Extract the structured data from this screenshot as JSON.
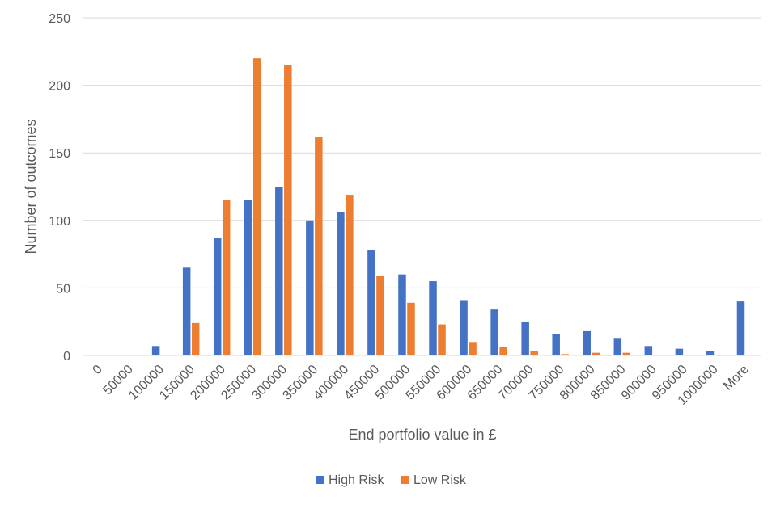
{
  "chart_data": {
    "type": "bar",
    "title": "",
    "xlabel": "End portfolio value in £",
    "ylabel": "Number of outcomes",
    "ylim": [
      0,
      250
    ],
    "yticks": [
      0,
      50,
      100,
      150,
      200,
      250
    ],
    "grid": true,
    "legend_position": "bottom",
    "categories": [
      "0",
      "50000",
      "100000",
      "150000",
      "200000",
      "250000",
      "300000",
      "350000",
      "400000",
      "450000",
      "500000",
      "550000",
      "600000",
      "650000",
      "700000",
      "750000",
      "800000",
      "850000",
      "900000",
      "950000",
      "1000000",
      "More"
    ],
    "series": [
      {
        "name": "High Risk",
        "color": "#4472C4",
        "values": [
          0,
          0,
          7,
          65,
          87,
          115,
          125,
          100,
          106,
          78,
          60,
          55,
          41,
          34,
          25,
          16,
          18,
          13,
          7,
          5,
          3,
          40
        ]
      },
      {
        "name": "Low Risk",
        "color": "#ED7D31",
        "values": [
          0,
          0,
          0,
          24,
          115,
          220,
          215,
          162,
          119,
          59,
          39,
          23,
          10,
          6,
          3,
          1,
          2,
          2,
          0,
          0,
          0,
          0
        ]
      }
    ]
  }
}
